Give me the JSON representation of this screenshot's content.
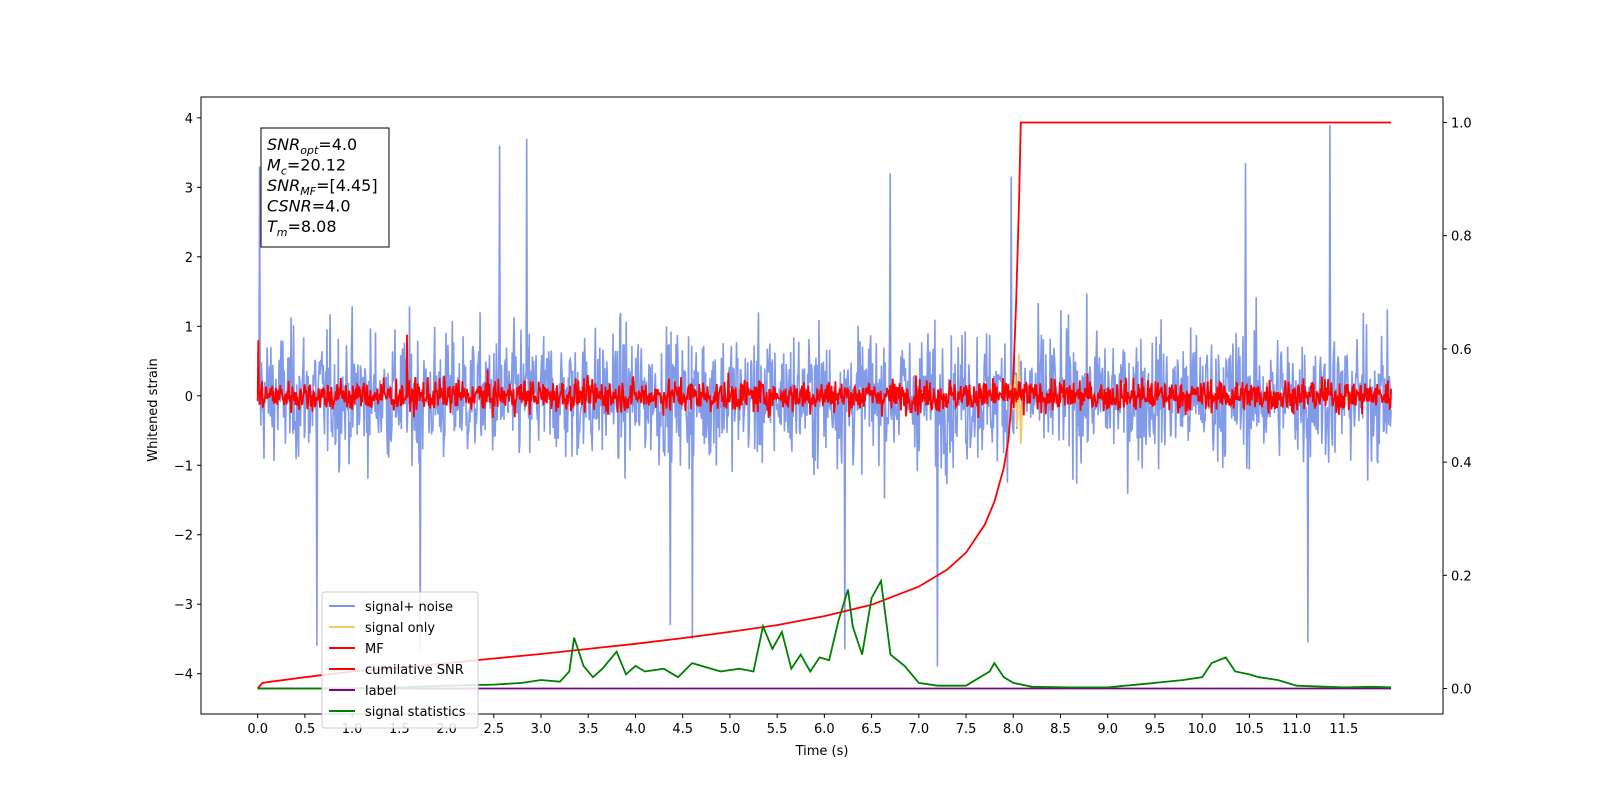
{
  "chart_data": {
    "type": "line",
    "xlabel": "Time (s)",
    "ylabel": "Whitened strain",
    "xlim": [
      -0.6,
      12.55
    ],
    "ylim_left": [
      -4.58,
      4.3
    ],
    "ylim_right": [
      -0.045,
      1.045
    ],
    "x_ticks": [
      0.0,
      0.5,
      1.0,
      1.5,
      2.0,
      2.5,
      3.0,
      3.5,
      4.0,
      4.5,
      5.0,
      5.5,
      6.0,
      6.5,
      7.0,
      7.5,
      8.0,
      8.5,
      9.0,
      9.5,
      10.0,
      10.5,
      11.0,
      11.5
    ],
    "x_tick_labels": [
      "0.0",
      "0.5",
      "1.0",
      "1.5",
      "2.0",
      "2.5",
      "3.0",
      "3.5",
      "4.0",
      "4.5",
      "5.0",
      "5.5",
      "6.0",
      "6.5",
      "7.0",
      "7.5",
      "8.0",
      "8.5",
      "9.0",
      "9.5",
      "10.0",
      "10.5",
      "11.0",
      "11.5"
    ],
    "y_ticks_left": [
      4,
      3,
      2,
      1,
      0,
      -1,
      -2,
      -3,
      -4
    ],
    "y_tick_labels_left": [
      "4",
      "3",
      "2",
      "1",
      "0",
      "−1",
      "−2",
      "−3",
      "−4"
    ],
    "y_ticks_right": [
      1.0,
      0.8,
      0.6,
      0.4,
      0.2,
      0.0
    ],
    "y_tick_labels_right": [
      "1.0",
      "0.8",
      "0.6",
      "0.4",
      "0.2",
      "0.0"
    ],
    "annotation": {
      "lines": [
        {
          "base": "SNR",
          "sub": "opt",
          "rest": "=4.0"
        },
        {
          "base": "M",
          "sub": "c",
          "rest": "=20.12"
        },
        {
          "base": "SNR",
          "sub": "MF",
          "rest": "=[4.45]"
        },
        {
          "base": "CSNR",
          "sub": "",
          "rest": "=4.0"
        },
        {
          "base": "T",
          "sub": "m",
          "rest": "=8.08"
        }
      ]
    },
    "legend": {
      "placement": "lower-left",
      "entries": [
        {
          "label": "signal+ noise",
          "color": "#7b96e8"
        },
        {
          "label": "signal only",
          "color": "#f5c96b"
        },
        {
          "label": "MF",
          "color": "#ff0000"
        },
        {
          "label": "cumilative SNR",
          "color": "#ff0000"
        },
        {
          "label": "label",
          "color": "#800080"
        },
        {
          "label": "signal statistics",
          "color": "#008000"
        }
      ]
    },
    "series": [
      {
        "name": "signal+ noise",
        "axis": "left",
        "color": "#7b96e8",
        "kind": "noise",
        "x_range": [
          0.0,
          12.0
        ],
        "n_points": 1800,
        "typical_amplitude": 1.2,
        "range": [
          -3.85,
          3.9
        ],
        "spikes": [
          {
            "x": 0.02,
            "y": 3.3
          },
          {
            "x": 0.63,
            "y": -3.6
          },
          {
            "x": 1.72,
            "y": -3.65
          },
          {
            "x": 2.56,
            "y": 3.6
          },
          {
            "x": 2.85,
            "y": 3.7
          },
          {
            "x": 4.37,
            "y": -3.3
          },
          {
            "x": 4.6,
            "y": -3.5
          },
          {
            "x": 6.22,
            "y": -3.65
          },
          {
            "x": 6.7,
            "y": 3.2
          },
          {
            "x": 7.2,
            "y": -3.9
          },
          {
            "x": 7.98,
            "y": 3.15
          },
          {
            "x": 10.46,
            "y": 3.35
          },
          {
            "x": 11.12,
            "y": -3.55
          },
          {
            "x": 11.35,
            "y": 3.9
          }
        ]
      },
      {
        "name": "signal only",
        "axis": "left",
        "color": "#f5c96b",
        "kind": "burst",
        "x": [
          7.95,
          7.98,
          8.0,
          8.02,
          8.04,
          8.06,
          8.08,
          8.1
        ],
        "y": [
          0.0,
          0.15,
          -0.2,
          0.3,
          -0.45,
          0.6,
          -0.7,
          0.0
        ]
      },
      {
        "name": "MF",
        "axis": "left",
        "color": "#ff0000",
        "kind": "noise",
        "x_range": [
          0.0,
          12.0
        ],
        "n_points": 1800,
        "typical_amplitude": 0.3,
        "range": [
          -0.4,
          0.85
        ],
        "spikes": [
          {
            "x": 0.01,
            "y": 0.8
          },
          {
            "x": 1.58,
            "y": 0.88
          }
        ]
      },
      {
        "name": "cumilative SNR",
        "axis": "right",
        "color": "#ff0000",
        "kind": "line",
        "x": [
          0.0,
          0.05,
          0.5,
          1.0,
          1.5,
          2.0,
          2.5,
          3.0,
          3.5,
          4.0,
          4.5,
          5.0,
          5.5,
          6.0,
          6.5,
          7.0,
          7.3,
          7.5,
          7.7,
          7.8,
          7.9,
          7.95,
          8.0,
          8.03,
          8.06,
          8.08,
          9.0,
          10.0,
          11.0,
          12.0
        ],
        "y": [
          0.0,
          0.01,
          0.02,
          0.03,
          0.037,
          0.045,
          0.053,
          0.061,
          0.07,
          0.079,
          0.089,
          0.1,
          0.112,
          0.128,
          0.148,
          0.18,
          0.21,
          0.24,
          0.29,
          0.33,
          0.39,
          0.44,
          0.55,
          0.68,
          0.85,
          1.0,
          1.0,
          1.0,
          1.0,
          1.0
        ]
      },
      {
        "name": "label",
        "axis": "right",
        "color": "#800080",
        "kind": "line",
        "x": [
          0.0,
          12.0
        ],
        "y": [
          0.0,
          0.0
        ]
      },
      {
        "name": "signal statistics",
        "axis": "right",
        "color": "#008000",
        "kind": "line",
        "x": [
          0.0,
          0.5,
          1.0,
          1.5,
          2.0,
          2.5,
          2.8,
          3.0,
          3.2,
          3.3,
          3.35,
          3.45,
          3.55,
          3.65,
          3.8,
          3.9,
          4.0,
          4.1,
          4.3,
          4.45,
          4.6,
          4.7,
          4.9,
          5.1,
          5.25,
          5.35,
          5.45,
          5.55,
          5.65,
          5.75,
          5.85,
          5.95,
          6.05,
          6.15,
          6.25,
          6.3,
          6.4,
          6.5,
          6.6,
          6.7,
          6.85,
          7.0,
          7.2,
          7.5,
          7.75,
          7.8,
          7.9,
          8.0,
          8.2,
          8.6,
          9.0,
          9.5,
          9.8,
          10.0,
          10.1,
          10.25,
          10.35,
          10.5,
          10.6,
          10.8,
          11.0,
          11.5,
          11.8,
          12.0
        ],
        "y": [
          0.0,
          0.0,
          0.0,
          0.002,
          0.005,
          0.007,
          0.01,
          0.015,
          0.012,
          0.03,
          0.09,
          0.04,
          0.02,
          0.035,
          0.065,
          0.025,
          0.04,
          0.03,
          0.035,
          0.02,
          0.045,
          0.04,
          0.03,
          0.035,
          0.03,
          0.11,
          0.07,
          0.1,
          0.035,
          0.06,
          0.03,
          0.055,
          0.05,
          0.12,
          0.175,
          0.11,
          0.06,
          0.16,
          0.19,
          0.06,
          0.04,
          0.01,
          0.005,
          0.005,
          0.03,
          0.045,
          0.02,
          0.01,
          0.003,
          0.002,
          0.002,
          0.01,
          0.015,
          0.02,
          0.045,
          0.055,
          0.03,
          0.025,
          0.02,
          0.015,
          0.005,
          0.002,
          0.003,
          0.002
        ]
      }
    ]
  }
}
